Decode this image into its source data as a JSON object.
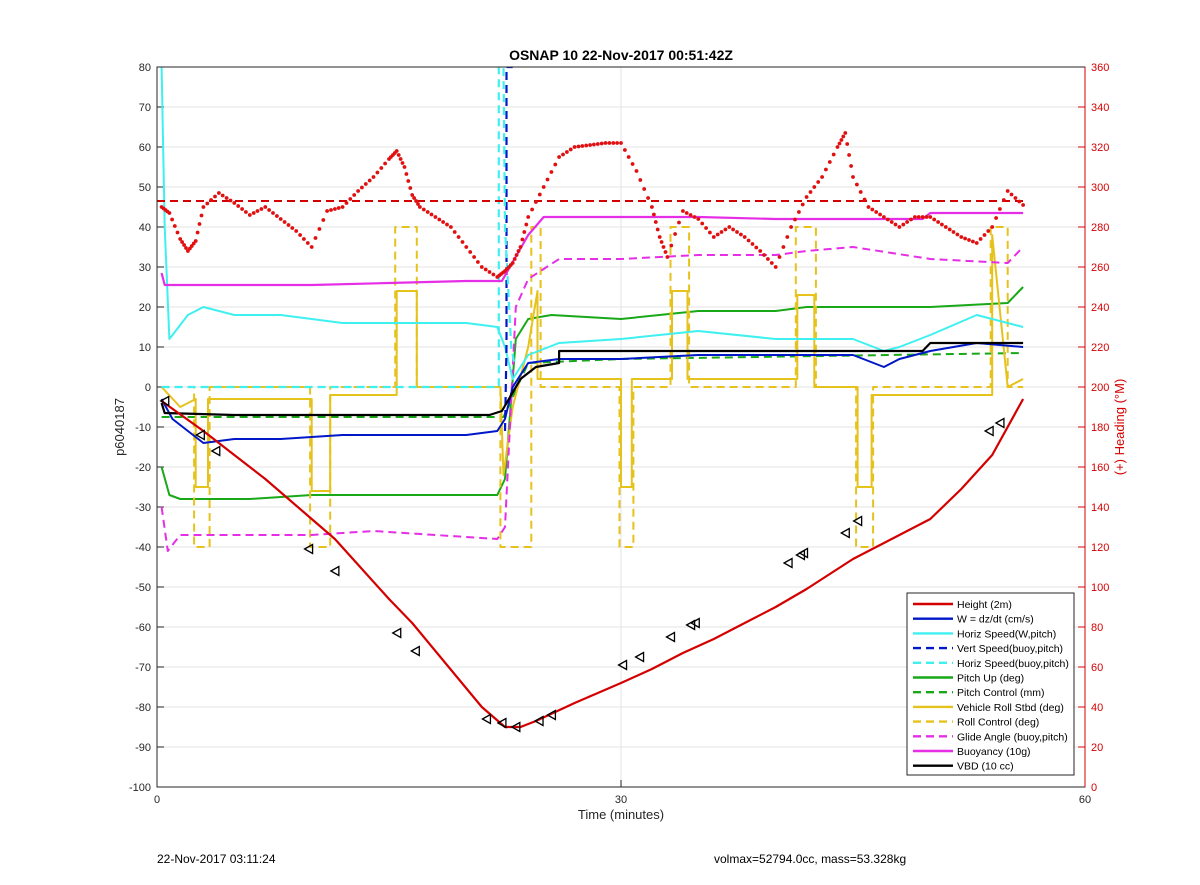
{
  "footer": {
    "date": "22-Nov-2017 03:11:24",
    "info": "volmax=52794.0cc, mass=53.328kg"
  },
  "colors": {
    "red": "#d40000",
    "blue": "#0018c8",
    "cyan": "#3ff0f0",
    "green": "#18a818",
    "gold": "#e6c21c",
    "magenta": "#e52ee5",
    "black": "#000000",
    "heading": "#e01010"
  },
  "chart_data": {
    "type": "line",
    "title": "OSNAP 10 22-Nov-2017 00:51:42Z",
    "xlabel": "Time (minutes)",
    "ylabel": "p6040187",
    "y2label": "(+) Heading (°M)",
    "xlim": [
      0,
      60
    ],
    "ylim": [
      -100,
      80
    ],
    "y2lim": [
      0,
      360
    ],
    "xticks": [
      0,
      30,
      60
    ],
    "yticks": [
      -100,
      -90,
      -80,
      -70,
      -60,
      -50,
      -40,
      -30,
      -20,
      -10,
      0,
      10,
      20,
      30,
      40,
      50,
      60,
      70,
      80
    ],
    "y2ticks": [
      0,
      20,
      40,
      60,
      80,
      100,
      120,
      140,
      160,
      180,
      200,
      220,
      240,
      260,
      280,
      300,
      320,
      340,
      360
    ],
    "grid": true,
    "legend_position": "bottom-right",
    "series": [
      {
        "name": "Height (2m)",
        "color": "#d40000",
        "style": "solid",
        "width": 2.2,
        "x": [
          0.3,
          3,
          5,
          7,
          10,
          11.5,
          15,
          16.5,
          21,
          22.5,
          23.5,
          24.5,
          27,
          30,
          32,
          34,
          36,
          38,
          40,
          42,
          45,
          48,
          50,
          52,
          54,
          56
        ],
        "y": [
          -3.5,
          -11,
          -17,
          -23,
          -33,
          -38,
          -53,
          -59,
          -80,
          -85,
          -85,
          -83.5,
          -79,
          -74,
          -70.5,
          -66.5,
          -63,
          -59,
          -55,
          -50.5,
          -43,
          -37,
          -33,
          -25.5,
          -17,
          -3
        ]
      },
      {
        "name": "W = dz/dt (cm/s)",
        "color": "#0018c8",
        "style": "solid",
        "width": 2,
        "x": [
          0.3,
          1,
          2,
          3,
          5,
          8,
          12,
          16,
          20,
          22,
          22.5,
          23,
          24,
          26,
          30,
          35,
          40,
          45,
          47,
          48,
          50,
          53,
          56
        ],
        "y": [
          -3,
          -8,
          -11,
          -14,
          -13,
          -13,
          -12,
          -12,
          -12,
          -11,
          -8,
          0,
          6,
          7,
          7,
          8,
          8,
          8,
          5,
          7,
          9,
          11,
          10
        ]
      },
      {
        "name": "Horiz Speed(W,pitch)",
        "color": "#3ff0f0",
        "style": "solid",
        "width": 2,
        "x": [
          0.3,
          0.5,
          0.8,
          1.2,
          2,
          3,
          5,
          8,
          12,
          16,
          20,
          22,
          22.5,
          23,
          24,
          26,
          30,
          35,
          40,
          45,
          47,
          48,
          50,
          53,
          56
        ],
        "y": [
          80,
          40,
          12,
          14,
          18,
          20,
          18,
          18,
          16,
          16,
          16,
          15,
          10,
          2,
          8,
          11,
          12,
          14,
          12,
          12,
          9,
          10,
          13,
          18,
          15
        ]
      },
      {
        "name": "Vert Speed(buoy,pitch)",
        "color": "#0018c8",
        "style": "dashed",
        "width": 2.2,
        "x": [
          22.5,
          22.6,
          22.6,
          23.0
        ],
        "y": [
          -11,
          10,
          80,
          80
        ]
      },
      {
        "name": "Horiz Speed(buoy,pitch)",
        "color": "#3ff0f0",
        "style": "dashed",
        "width": 2.2,
        "x": [
          0.3,
          22.1,
          22.1,
          22.4,
          22.5,
          22.9,
          23.1
        ],
        "y": [
          0,
          0,
          80,
          80,
          40,
          10,
          6
        ]
      },
      {
        "name": "Pitch Up (deg)",
        "color": "#18a818",
        "style": "solid",
        "width": 2,
        "x": [
          0.3,
          0.8,
          1.5,
          3,
          6,
          10,
          14,
          18,
          22,
          22.5,
          23.2,
          24,
          25.5,
          30,
          35,
          40,
          42,
          45,
          50,
          55,
          56
        ],
        "y": [
          -20,
          -27,
          -28,
          -28,
          -28,
          -27,
          -27,
          -27,
          -27,
          -23,
          12,
          17,
          18,
          17,
          19,
          19,
          20,
          20,
          20,
          21,
          25
        ]
      },
      {
        "name": "Pitch Control (mm)",
        "color": "#18a818",
        "style": "dashed",
        "width": 2,
        "x": [
          0.3,
          22.4,
          24,
          30,
          56
        ],
        "y": [
          -7.5,
          -7.5,
          6,
          7,
          8.5
        ]
      },
      {
        "name": "Vehicle Roll Stbd (deg)",
        "color": "#e6c21c",
        "style": "solid",
        "width": 2,
        "x": [
          0.3,
          1.5,
          2.5,
          2.5,
          3.3,
          3.3,
          10,
          10,
          11.2,
          11.2,
          15.5,
          15.5,
          16.8,
          16.8,
          22.2,
          22.4,
          23,
          24,
          24.6,
          24.6,
          30,
          30,
          30.7,
          30.7,
          33.3,
          33.3,
          34.3,
          34.3,
          41.4,
          41.4,
          42.5,
          42.5,
          45.3,
          45.3,
          46.2,
          46.2,
          54,
          54,
          55,
          56
        ],
        "y": [
          0,
          -5,
          -3,
          -25,
          -25,
          -3,
          -3,
          -26,
          -26,
          -2,
          -2,
          24,
          24,
          0,
          0,
          -22,
          -5,
          10,
          24,
          2,
          2,
          -25,
          -25,
          2,
          2,
          24,
          24,
          2,
          2,
          23,
          23,
          0,
          0,
          -25,
          -25,
          -2,
          -2,
          38,
          0,
          2
        ]
      },
      {
        "name": "Roll Control (deg)",
        "color": "#e6c21c",
        "style": "dashed",
        "width": 2,
        "x": [
          0.3,
          2.4,
          2.4,
          3.4,
          3.4,
          9.9,
          9.9,
          11.2,
          11.2,
          15.4,
          15.4,
          16.8,
          16.8,
          22.2,
          22.2,
          24.2,
          24.2,
          24.8,
          24.8,
          29.9,
          29.9,
          30.8,
          30.8,
          33.2,
          33.2,
          34.4,
          34.4,
          41.3,
          41.3,
          42.6,
          42.6,
          45.2,
          45.2,
          46.3,
          46.3,
          53.9,
          53.9,
          55,
          55,
          56
        ],
        "y": [
          0,
          0,
          -40,
          -40,
          0,
          0,
          -40,
          -40,
          0,
          0,
          40,
          40,
          0,
          0,
          -40,
          -40,
          40,
          40,
          0,
          0,
          -40,
          -40,
          0,
          0,
          40,
          40,
          0,
          0,
          40,
          40,
          0,
          0,
          -40,
          -40,
          0,
          0,
          40,
          40,
          0,
          0
        ]
      },
      {
        "name": "Glide Angle (buoy,pitch)",
        "color": "#e52ee5",
        "style": "dashed",
        "width": 2,
        "x": [
          0.3,
          0.7,
          1.5,
          3,
          6,
          10,
          14,
          18,
          22,
          22.5,
          23.2,
          24,
          26,
          30,
          35,
          40,
          42,
          45,
          50,
          55,
          56
        ],
        "y": [
          -30,
          -41,
          -37,
          -37,
          -37,
          -37,
          -36,
          -37,
          -38,
          -35,
          20,
          27,
          32,
          32,
          33,
          33,
          34,
          35,
          32,
          31,
          35
        ]
      },
      {
        "name": "Buoyancy (10g)",
        "color": "#e52ee5",
        "style": "solid",
        "width": 2.2,
        "x": [
          0.3,
          0.5,
          5,
          10,
          15,
          20,
          21.5,
          22.3,
          24,
          25,
          30,
          35,
          40,
          45,
          49.5,
          50,
          56
        ],
        "y": [
          28.5,
          25.5,
          25.5,
          25.5,
          26,
          26.5,
          26.5,
          26.5,
          38,
          42.5,
          42.5,
          42.5,
          42,
          42,
          42,
          43.5,
          43.5
        ]
      },
      {
        "name": "VBD (10 cc)",
        "color": "#000000",
        "style": "solid",
        "width": 2.2,
        "x": [
          0.3,
          0.5,
          5,
          10,
          15,
          20,
          21.5,
          22.3,
          23.5,
          24.5,
          26,
          26,
          30,
          35,
          40,
          45,
          49.5,
          50,
          56
        ],
        "y": [
          -4,
          -6.5,
          -7,
          -7,
          -7,
          -7,
          -7,
          -6,
          2,
          5,
          6,
          9,
          9,
          9,
          9,
          9,
          9,
          11,
          11
        ]
      }
    ],
    "markers": {
      "color": "#000000",
      "shape": "triangle-left",
      "x": [
        0.5,
        2.8,
        3.8,
        9.8,
        11.5,
        15.5,
        16.7,
        21.3,
        22.3,
        23.2,
        24.7,
        25.5,
        30.1,
        31.2,
        33.2,
        34.5,
        34.8,
        40.8,
        41.6,
        41.8,
        44.5,
        45.3,
        53.8,
        54.5
      ],
      "y": [
        -3.5,
        -12,
        -16,
        -40.5,
        -46,
        -61.5,
        -66,
        -83,
        -84,
        -85,
        -83.5,
        -82,
        -69.5,
        -67.5,
        -62.5,
        -59.5,
        -59,
        -44,
        -42,
        -41.5,
        -36.5,
        -33.5,
        -11,
        -9
      ]
    },
    "heading_series": {
      "name": "Heading",
      "color": "#e01010",
      "axis": "right",
      "style": "dotted",
      "x": [
        0.3,
        0.8,
        1.5,
        2,
        2.5,
        3,
        4,
        5,
        6,
        7,
        8,
        9,
        10,
        11,
        12,
        13,
        14,
        15,
        15.5,
        16,
        16.5,
        17,
        18,
        19,
        20,
        21,
        22,
        22.5,
        23,
        23.5,
        24,
        25,
        26,
        27,
        28,
        29,
        30,
        31,
        32,
        32.5,
        33,
        34,
        35,
        36,
        37,
        38,
        39,
        40,
        41,
        42,
        43,
        44,
        44.5,
        45,
        46,
        47,
        48,
        49,
        50,
        51,
        52,
        53,
        54,
        55,
        56
      ],
      "y": [
        290,
        287,
        274,
        268,
        273,
        290,
        297,
        292,
        286,
        290,
        284,
        278,
        270,
        288,
        290,
        298,
        305,
        314,
        318,
        310,
        296,
        290,
        285,
        280,
        270,
        260,
        255,
        258,
        262,
        270,
        285,
        300,
        315,
        320,
        321,
        322,
        322,
        308,
        290,
        275,
        265,
        288,
        284,
        275,
        280,
        275,
        268,
        260,
        280,
        295,
        305,
        320,
        327,
        305,
        290,
        285,
        280,
        285,
        285,
        280,
        275,
        272,
        280,
        298,
        291
      ]
    },
    "heading_reference": {
      "value": 293,
      "color": "#d40000",
      "style": "dashed"
    }
  }
}
